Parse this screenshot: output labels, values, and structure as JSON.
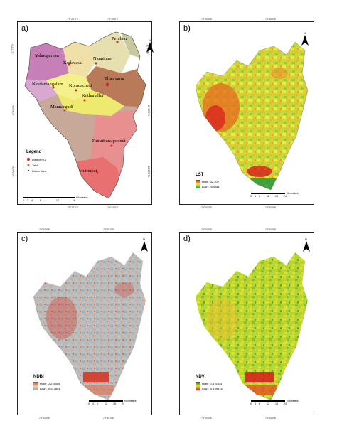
{
  "panels": {
    "a": {
      "label": "a)"
    },
    "b": {
      "label": "b)"
    },
    "c": {
      "label": "c)"
    },
    "d": {
      "label": "d)"
    }
  },
  "ticks": {
    "a_top": [
      "79°20'0\"E",
      "79°40'0\"E"
    ],
    "a_bottom": [
      "79°20'0\"E",
      "79°40'0\"E"
    ],
    "a_left": [
      "11°0'0\"N",
      "10°40'0\"N",
      "10°20'0\"N"
    ],
    "a_right": [
      "11°0'0\"N",
      "10°40'0\"N",
      "10°20'0\"N"
    ],
    "b_top": [
      "79°20'0\"E",
      "79°40'0\"E"
    ],
    "b_bottom": [
      "79°20'0\"E",
      "79°40'0\"E"
    ],
    "c_top": [
      "79°20'0\"E",
      "79°40'0\"E"
    ],
    "c_bottom": [
      "79°20'0\"E",
      "79°40'0\"E"
    ],
    "d_top": [
      "79°20'0\"E",
      "79°40'0\"E"
    ],
    "d_bottom": [
      "79°20'0\"E",
      "79°40'0\"E"
    ]
  },
  "north_label": "N",
  "towns": {
    "vs": "Valangaiman",
    "kd": "Kodavasal",
    "nl": "Nannilam",
    "pr": "Peralam",
    "nd": "Needamangalam",
    "kc": "Koradacheri",
    "tv": "Thiruvarur",
    "km": "Kuthanallur",
    "mg": "Mannargudi",
    "tp": "Thiruthuraipoondi",
    "mu": "Muthupet"
  },
  "legend_a": {
    "title": "Legend",
    "items": [
      {
        "label": "District HQ",
        "color": "#d62020"
      },
      {
        "label": "Taluk",
        "color": "#e8602a"
      },
      {
        "label": "Urban Area",
        "color": "#000000"
      }
    ]
  },
  "legend_b": {
    "title": "LST",
    "high": "High : 32.302",
    "low": "Low : 20.6811"
  },
  "legend_c": {
    "title": "NDBI",
    "high": "High : 0.216505",
    "low": "Low : -0.513861"
  },
  "legend_d": {
    "title": "NDVI",
    "high": "High : 0.476334",
    "low": "Low : -0.159916"
  },
  "scalebar_a": {
    "numbers": [
      "0",
      "2",
      "4",
      "8",
      "12",
      "16"
    ],
    "unit": "Kilometers"
  },
  "scalebar_b": {
    "numbers": [
      "0",
      "3",
      "6",
      "12",
      "18",
      "24"
    ],
    "unit": "Kilometers"
  },
  "scalebar_c": {
    "numbers": [
      "0",
      "3",
      "6",
      "12",
      "18",
      "24"
    ],
    "unit": "Kilometers"
  },
  "scalebar_d": {
    "numbers": [
      "0",
      "3",
      "6",
      "12",
      "18",
      "24"
    ],
    "unit": "Kilometers"
  },
  "colors": {
    "taluk_valangaiman": "#c77fb8",
    "taluk_kodavasal": "#f0e0a8",
    "taluk_nannilam": "#e6e0b0",
    "taluk_peralam": "#c9c9a0",
    "taluk_needamangalam": "#d8a8d0",
    "taluk_koradacheri": "#f4f08a",
    "taluk_thiruvarur": "#b97a5a",
    "taluk_kuthanallur": "#eeea70",
    "taluk_mannargudi": "#c8a898",
    "taluk_thiruthuraipoondi": "#e89090",
    "taluk_muthupet": "#e87070",
    "lst_high": "#d7191c",
    "lst_mid": "#f3e83a",
    "lst_low": "#1a9641",
    "ndbi_high": "#d7301f",
    "ndbi_low": "#8fa3b5",
    "ndvi_high": "#1a7a1a",
    "ndvi_mid": "#e0e020",
    "ndvi_low": "#d7191c"
  }
}
